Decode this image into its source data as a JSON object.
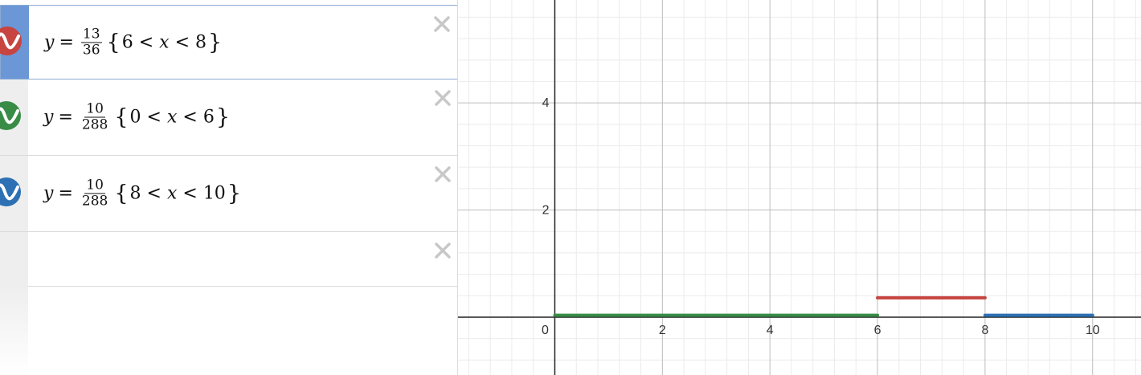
{
  "expressions": [
    {
      "variable": "y",
      "equals": "=",
      "fraction": {
        "numerator": "13",
        "denominator": "36"
      },
      "domain": {
        "open_brace": "{",
        "lower": "6",
        "lt1": "<",
        "var": "x",
        "lt2": "<",
        "upper": "8",
        "close_brace": "}"
      },
      "color": "#c74440",
      "icon": "wave-icon",
      "selected": true,
      "delete_icon": "close-icon"
    },
    {
      "variable": "y",
      "equals": "=",
      "fraction": {
        "numerator": "10",
        "denominator": "288"
      },
      "domain": {
        "open_brace": "{",
        "lower": "0",
        "lt1": "<",
        "var": "x",
        "lt2": "<",
        "upper": "6",
        "close_brace": "}"
      },
      "color": "#388c46",
      "icon": "wave-icon",
      "selected": false,
      "delete_icon": "close-icon"
    },
    {
      "variable": "y",
      "equals": "=",
      "fraction": {
        "numerator": "10",
        "denominator": "288"
      },
      "domain": {
        "open_brace": "{",
        "lower": "8",
        "lt1": "<",
        "var": "x",
        "lt2": "<",
        "upper": "10",
        "close_brace": "}"
      },
      "color": "#2d70b3",
      "icon": "wave-icon",
      "selected": false,
      "delete_icon": "close-icon"
    },
    {
      "empty": true,
      "delete_icon": "close-icon"
    }
  ],
  "graph": {
    "x_axis_labels": [
      "2",
      "4",
      "6",
      "8",
      "10"
    ],
    "y_axis_labels": [
      "2",
      "4"
    ],
    "origin_label": "0",
    "x_range": [
      -1.8,
      10.9
    ],
    "y_range": [
      -1.08,
      5.92
    ],
    "grid": true,
    "segments": [
      {
        "y": 0.3611,
        "x_start": 6,
        "x_end": 8,
        "color": "#c74440"
      },
      {
        "y": 0.0347,
        "x_start": 0,
        "x_end": 6,
        "color": "#388c46"
      },
      {
        "y": 0.0347,
        "x_start": 8,
        "x_end": 10,
        "color": "#2d70b3"
      }
    ]
  }
}
